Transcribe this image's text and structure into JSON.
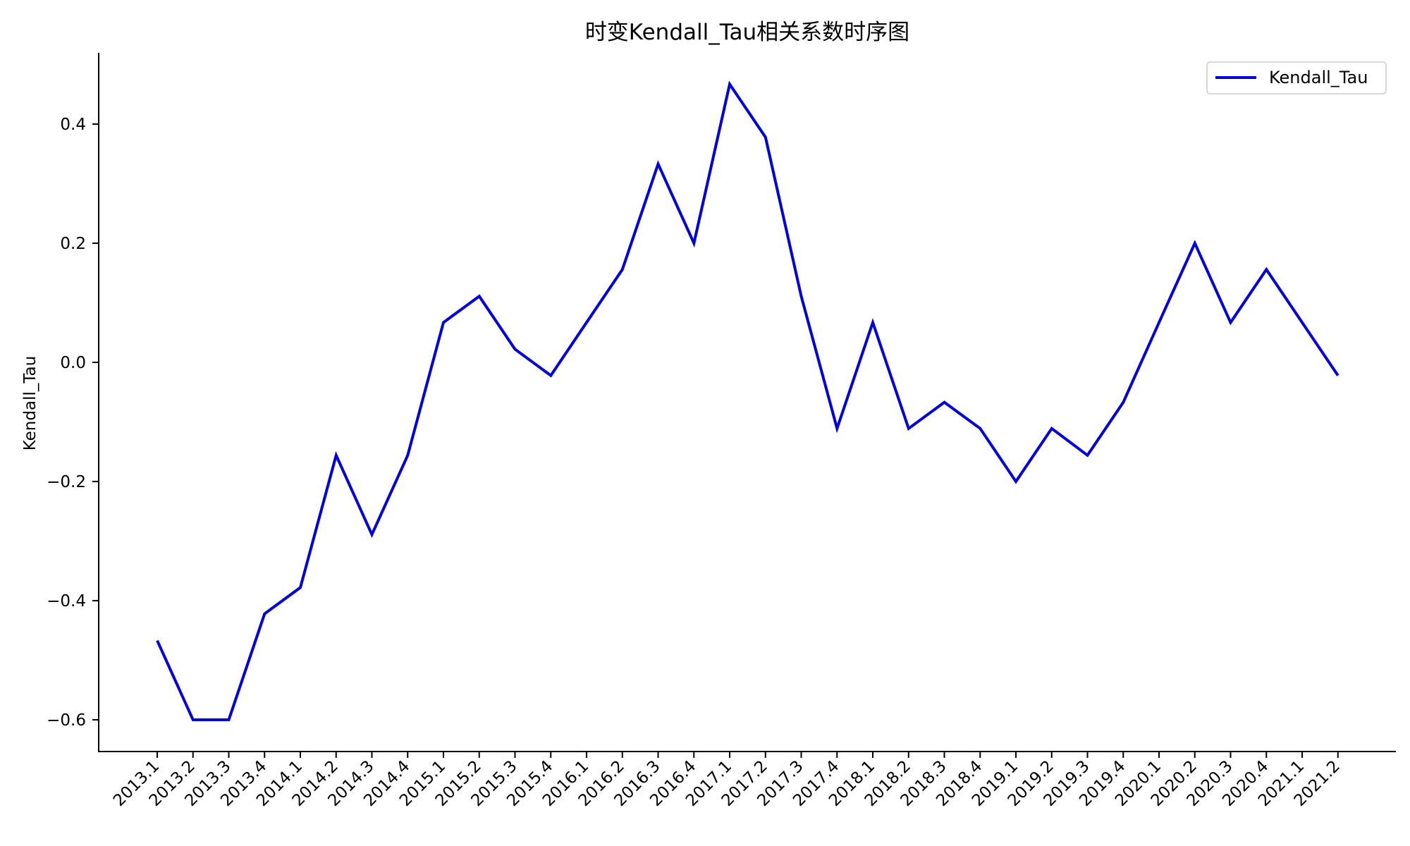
{
  "chart_data": {
    "type": "line",
    "title": "时变Kendall_Tau相关系数时序图",
    "xlabel": "",
    "ylabel": "Kendall_Tau",
    "categories": [
      "2013.1",
      "2013.2",
      "2013.3",
      "2013.4",
      "2014.1",
      "2014.2",
      "2014.3",
      "2014.4",
      "2015.1",
      "2015.2",
      "2015.3",
      "2015.4",
      "2016.1",
      "2016.2",
      "2016.3",
      "2016.4",
      "2017.1",
      "2017.2",
      "2017.3",
      "2017.4",
      "2018.1",
      "2018.2",
      "2018.3",
      "2018.4",
      "2019.1",
      "2019.2",
      "2019.3",
      "2019.4",
      "2020.1",
      "2020.2",
      "2020.3",
      "2020.4",
      "2021.1",
      "2021.2"
    ],
    "series": [
      {
        "name": "Kendall_Tau",
        "color": "#0000e0",
        "values": [
          -0.467,
          -0.6,
          -0.6,
          -0.422,
          -0.378,
          -0.156,
          -0.289,
          -0.156,
          0.067,
          0.111,
          0.022,
          -0.022,
          0.067,
          0.156,
          0.333,
          0.2,
          0.467,
          0.378,
          0.111,
          -0.111,
          0.067,
          -0.111,
          -0.067,
          -0.111,
          -0.2,
          -0.111,
          -0.156,
          -0.067,
          0.067,
          0.2,
          0.067,
          0.156,
          0.067,
          -0.022
        ]
      }
    ],
    "yticks": [
      -0.6,
      -0.4,
      -0.2,
      0.0,
      0.2,
      0.4
    ],
    "ytick_labels": [
      "−0.6",
      "−0.4",
      "−0.2",
      "0.0",
      "0.2",
      "0.4"
    ],
    "ylim": [
      -0.65,
      0.52
    ],
    "grid": false,
    "legend_position": "top-right"
  }
}
